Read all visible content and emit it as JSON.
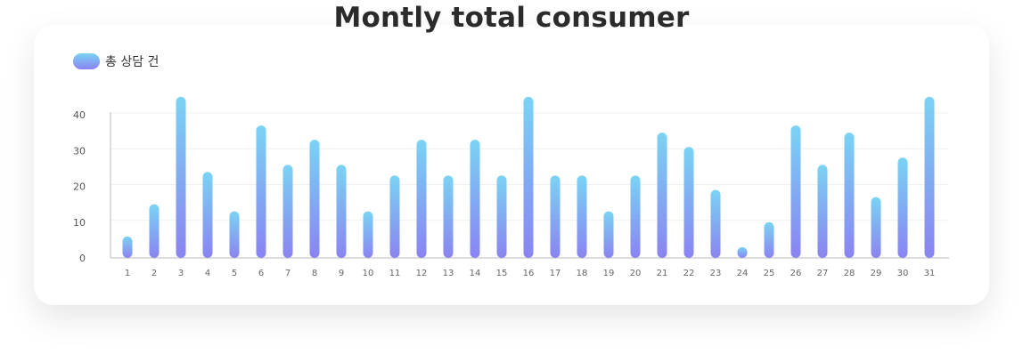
{
  "chart_data": {
    "type": "bar",
    "title": "Montly total consumer",
    "legend": {
      "position": "top-left",
      "entries": [
        "총 상담 건"
      ]
    },
    "series": [
      {
        "name": "총 상담 건",
        "values": [
          6,
          15,
          45,
          24,
          13,
          37,
          26,
          33,
          26,
          13,
          23,
          33,
          23,
          33,
          23,
          45,
          23,
          23,
          13,
          23,
          35,
          31,
          19,
          3,
          10,
          37,
          26,
          35,
          17,
          28,
          45
        ]
      }
    ],
    "categories": [
      "1",
      "2",
      "3",
      "4",
      "5",
      "6",
      "7",
      "8",
      "9",
      "10",
      "11",
      "12",
      "13",
      "14",
      "15",
      "16",
      "17",
      "18",
      "19",
      "20",
      "21",
      "22",
      "23",
      "24",
      "25",
      "26",
      "27",
      "28",
      "29",
      "30",
      "31"
    ],
    "y_ticks": [
      "0",
      "10",
      "20",
      "30",
      "40"
    ],
    "ylim": [
      0,
      40
    ],
    "grid": true,
    "colors": {
      "bar_top": "#7ad3f4",
      "bar_bottom": "#8a84f1",
      "axis": "#dddddd",
      "grid": "#f1f1f1"
    }
  }
}
